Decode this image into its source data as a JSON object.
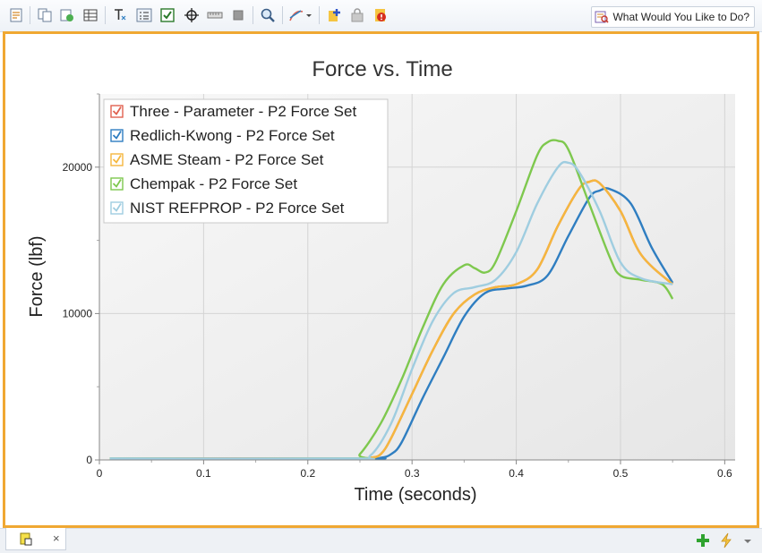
{
  "toolbar": {
    "icons": [
      "report-icon",
      "copy-icon",
      "copy-to-icon",
      "table-icon",
      "axis-text-icon",
      "legend-icon",
      "checkbox-icon",
      "crosshair-icon",
      "ruler-icon",
      "stop-icon",
      "zoom-icon",
      "curve-style-icon",
      "add-pin-icon",
      "lock-icon",
      "warning-icon"
    ],
    "help_label": "What Would You Like to Do?"
  },
  "chart_data": {
    "type": "line",
    "title": "Force vs. Time",
    "xlabel": "Time (seconds)",
    "ylabel": "Force (lbf)",
    "xlim": [
      0,
      0.61
    ],
    "ylim": [
      0,
      25000
    ],
    "xticks": [
      0,
      0.1,
      0.2,
      0.3,
      0.4,
      0.5,
      0.6
    ],
    "xtick_labels": [
      "0",
      "0.1",
      "0.2",
      "0.3",
      "0.4",
      "0.5",
      "0.6"
    ],
    "yticks": [
      0,
      10000,
      20000
    ],
    "ytick_labels": [
      "0",
      "10000",
      "20000"
    ],
    "grid": true,
    "legend_position": "top-left",
    "series": [
      {
        "name": "Three - Parameter - P2 Force Set",
        "color": "#e0614f",
        "x": [
          0.01,
          0.24,
          0.26,
          0.27,
          0.28,
          0.3,
          0.32,
          0.34,
          0.36,
          0.38,
          0.4,
          0.42,
          0.44,
          0.46,
          0.47,
          0.48,
          0.5,
          0.52,
          0.55
        ],
        "y": [
          100,
          100,
          150,
          400,
          1500,
          4500,
          7500,
          10000,
          11300,
          11800,
          12000,
          13000,
          16000,
          18500,
          19000,
          18900,
          17000,
          14000,
          12000
        ]
      },
      {
        "name": "Redlich-Kwong - P2 Force Set",
        "color": "#2f7ec1",
        "x": [
          0.01,
          0.25,
          0.27,
          0.28,
          0.29,
          0.31,
          0.33,
          0.35,
          0.37,
          0.39,
          0.41,
          0.43,
          0.45,
          0.47,
          0.48,
          0.49,
          0.51,
          0.53,
          0.55
        ],
        "y": [
          100,
          100,
          150,
          400,
          1200,
          4200,
          7000,
          9800,
          11400,
          11700,
          11900,
          12600,
          15300,
          17900,
          18400,
          18500,
          17500,
          14500,
          12100
        ]
      },
      {
        "name": "ASME Steam - P2 Force Set",
        "color": "#f5b73e",
        "x": [
          0.01,
          0.24,
          0.26,
          0.27,
          0.28,
          0.3,
          0.32,
          0.34,
          0.36,
          0.38,
          0.4,
          0.42,
          0.44,
          0.46,
          0.47,
          0.48,
          0.5,
          0.52,
          0.55
        ],
        "y": [
          100,
          100,
          150,
          400,
          1500,
          4500,
          7500,
          10000,
          11300,
          11800,
          12000,
          13000,
          16000,
          18500,
          19000,
          18900,
          17000,
          14000,
          12000
        ]
      },
      {
        "name": "Chempak - P2 Force Set",
        "color": "#7ec84e",
        "x": [
          0.01,
          0.24,
          0.25,
          0.27,
          0.29,
          0.31,
          0.33,
          0.35,
          0.36,
          0.37,
          0.38,
          0.4,
          0.42,
          0.43,
          0.44,
          0.45,
          0.47,
          0.49,
          0.5,
          0.52,
          0.54,
          0.55
        ],
        "y": [
          100,
          100,
          400,
          2500,
          5500,
          9000,
          12000,
          13300,
          13100,
          12800,
          13500,
          17000,
          20800,
          21700,
          21800,
          21200,
          17500,
          13800,
          12600,
          12300,
          12000,
          11000
        ]
      },
      {
        "name": "NIST REFPROP - P2 Force Set",
        "color": "#9fcde0",
        "x": [
          0.01,
          0.24,
          0.26,
          0.28,
          0.3,
          0.32,
          0.34,
          0.36,
          0.38,
          0.4,
          0.42,
          0.44,
          0.45,
          0.46,
          0.48,
          0.5,
          0.52,
          0.55
        ],
        "y": [
          100,
          100,
          300,
          2500,
          6200,
          9500,
          11400,
          11800,
          12300,
          14200,
          17500,
          20000,
          20300,
          19700,
          17000,
          13500,
          12400,
          12000
        ]
      }
    ]
  },
  "bottom": {
    "tab_close": "×",
    "icons": [
      "tab-document-icon",
      "add-icon",
      "lightning-icon",
      "dropdown-arrow-icon"
    ]
  }
}
